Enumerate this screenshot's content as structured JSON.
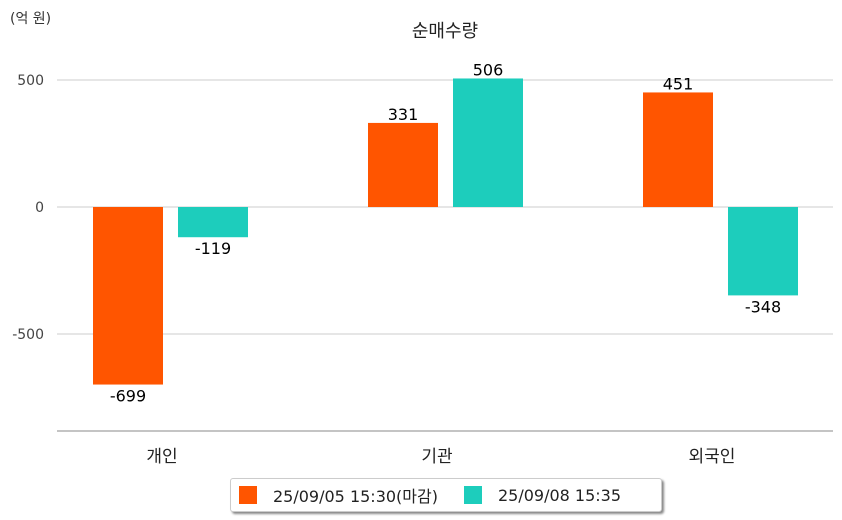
{
  "chart_data": {
    "type": "bar",
    "title": "순매수량",
    "unit_label": "(억 원)",
    "categories": [
      "개인",
      "기관",
      "외국인"
    ],
    "series": [
      {
        "name": "25/09/05 15:30(마감)",
        "color": "#FF5500",
        "values": [
          -699,
          331,
          451
        ]
      },
      {
        "name": "25/09/08 15:35",
        "color": "#1DCDBC",
        "values": [
          -119,
          506,
          -348
        ]
      }
    ],
    "yticks": [
      500,
      0,
      -500
    ],
    "ylim": [
      -882,
      600
    ],
    "grid": true,
    "legend": "bottom"
  }
}
